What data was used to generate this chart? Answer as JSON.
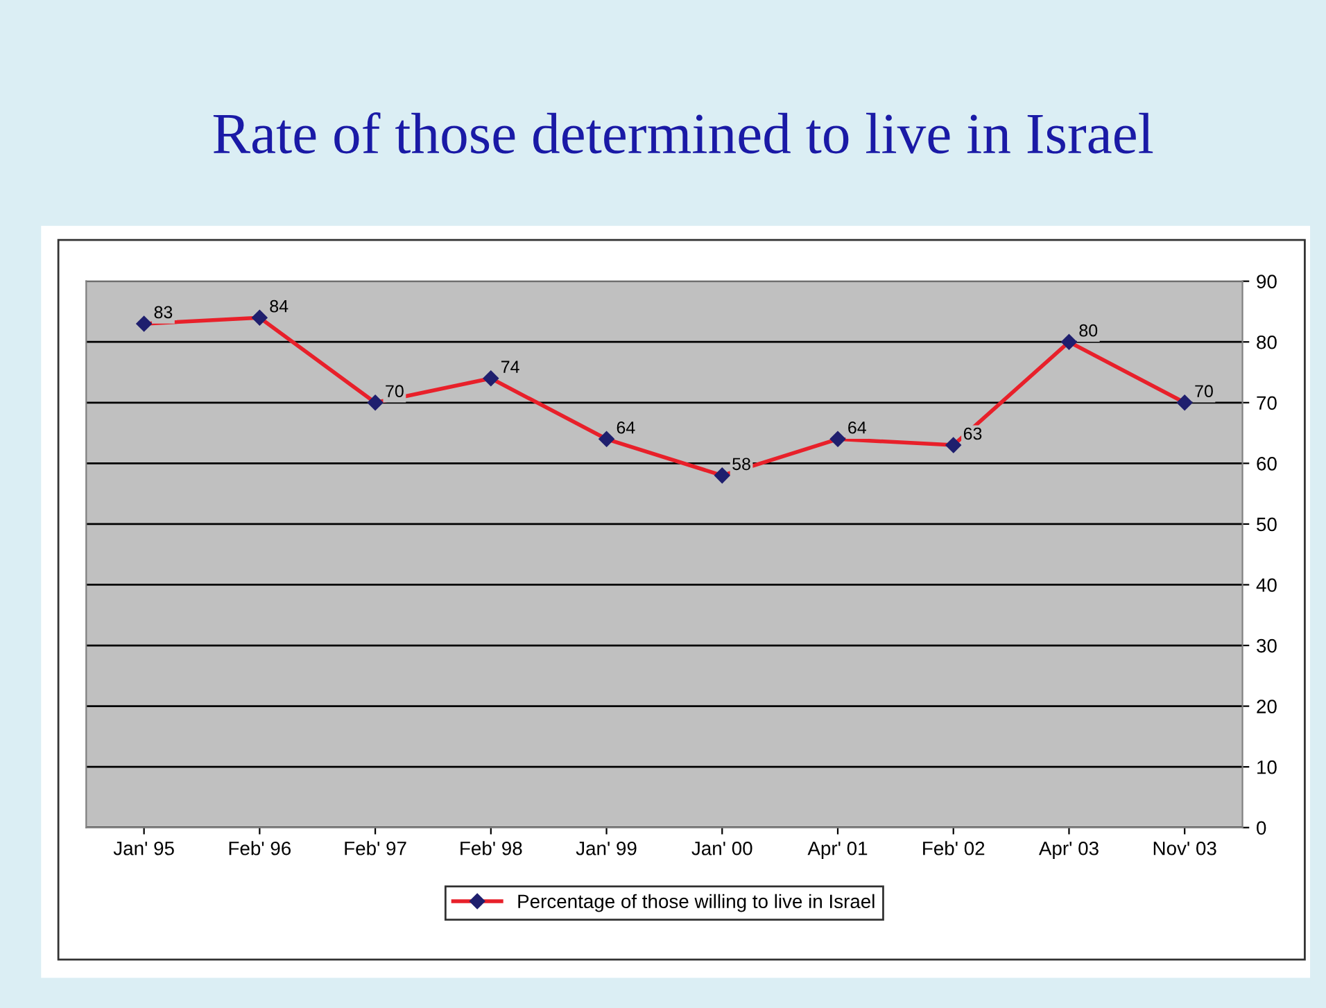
{
  "chart_data": {
    "type": "line",
    "title": "Rate of those determined to live in Israel",
    "categories": [
      "Jan' 95",
      "Feb' 96",
      "Feb' 97",
      "Feb' 98",
      "Jan' 99",
      "Jan' 00",
      "Apr' 01",
      "Feb' 02",
      "Apr' 03",
      "Nov' 03"
    ],
    "series": [
      {
        "name": "Percentage of those willing to live in Israel",
        "color": "#e8202a",
        "values": [
          83,
          84,
          70,
          74,
          64,
          58,
          64,
          63,
          80,
          70
        ]
      }
    ],
    "ylim": [
      0,
      90
    ],
    "yticks": [
      0,
      10,
      20,
      30,
      40,
      50,
      60,
      70,
      80,
      90
    ],
    "grid": "y",
    "legend": "bottom",
    "marker": "diamond",
    "line_style": "solid",
    "data_labels": true
  }
}
